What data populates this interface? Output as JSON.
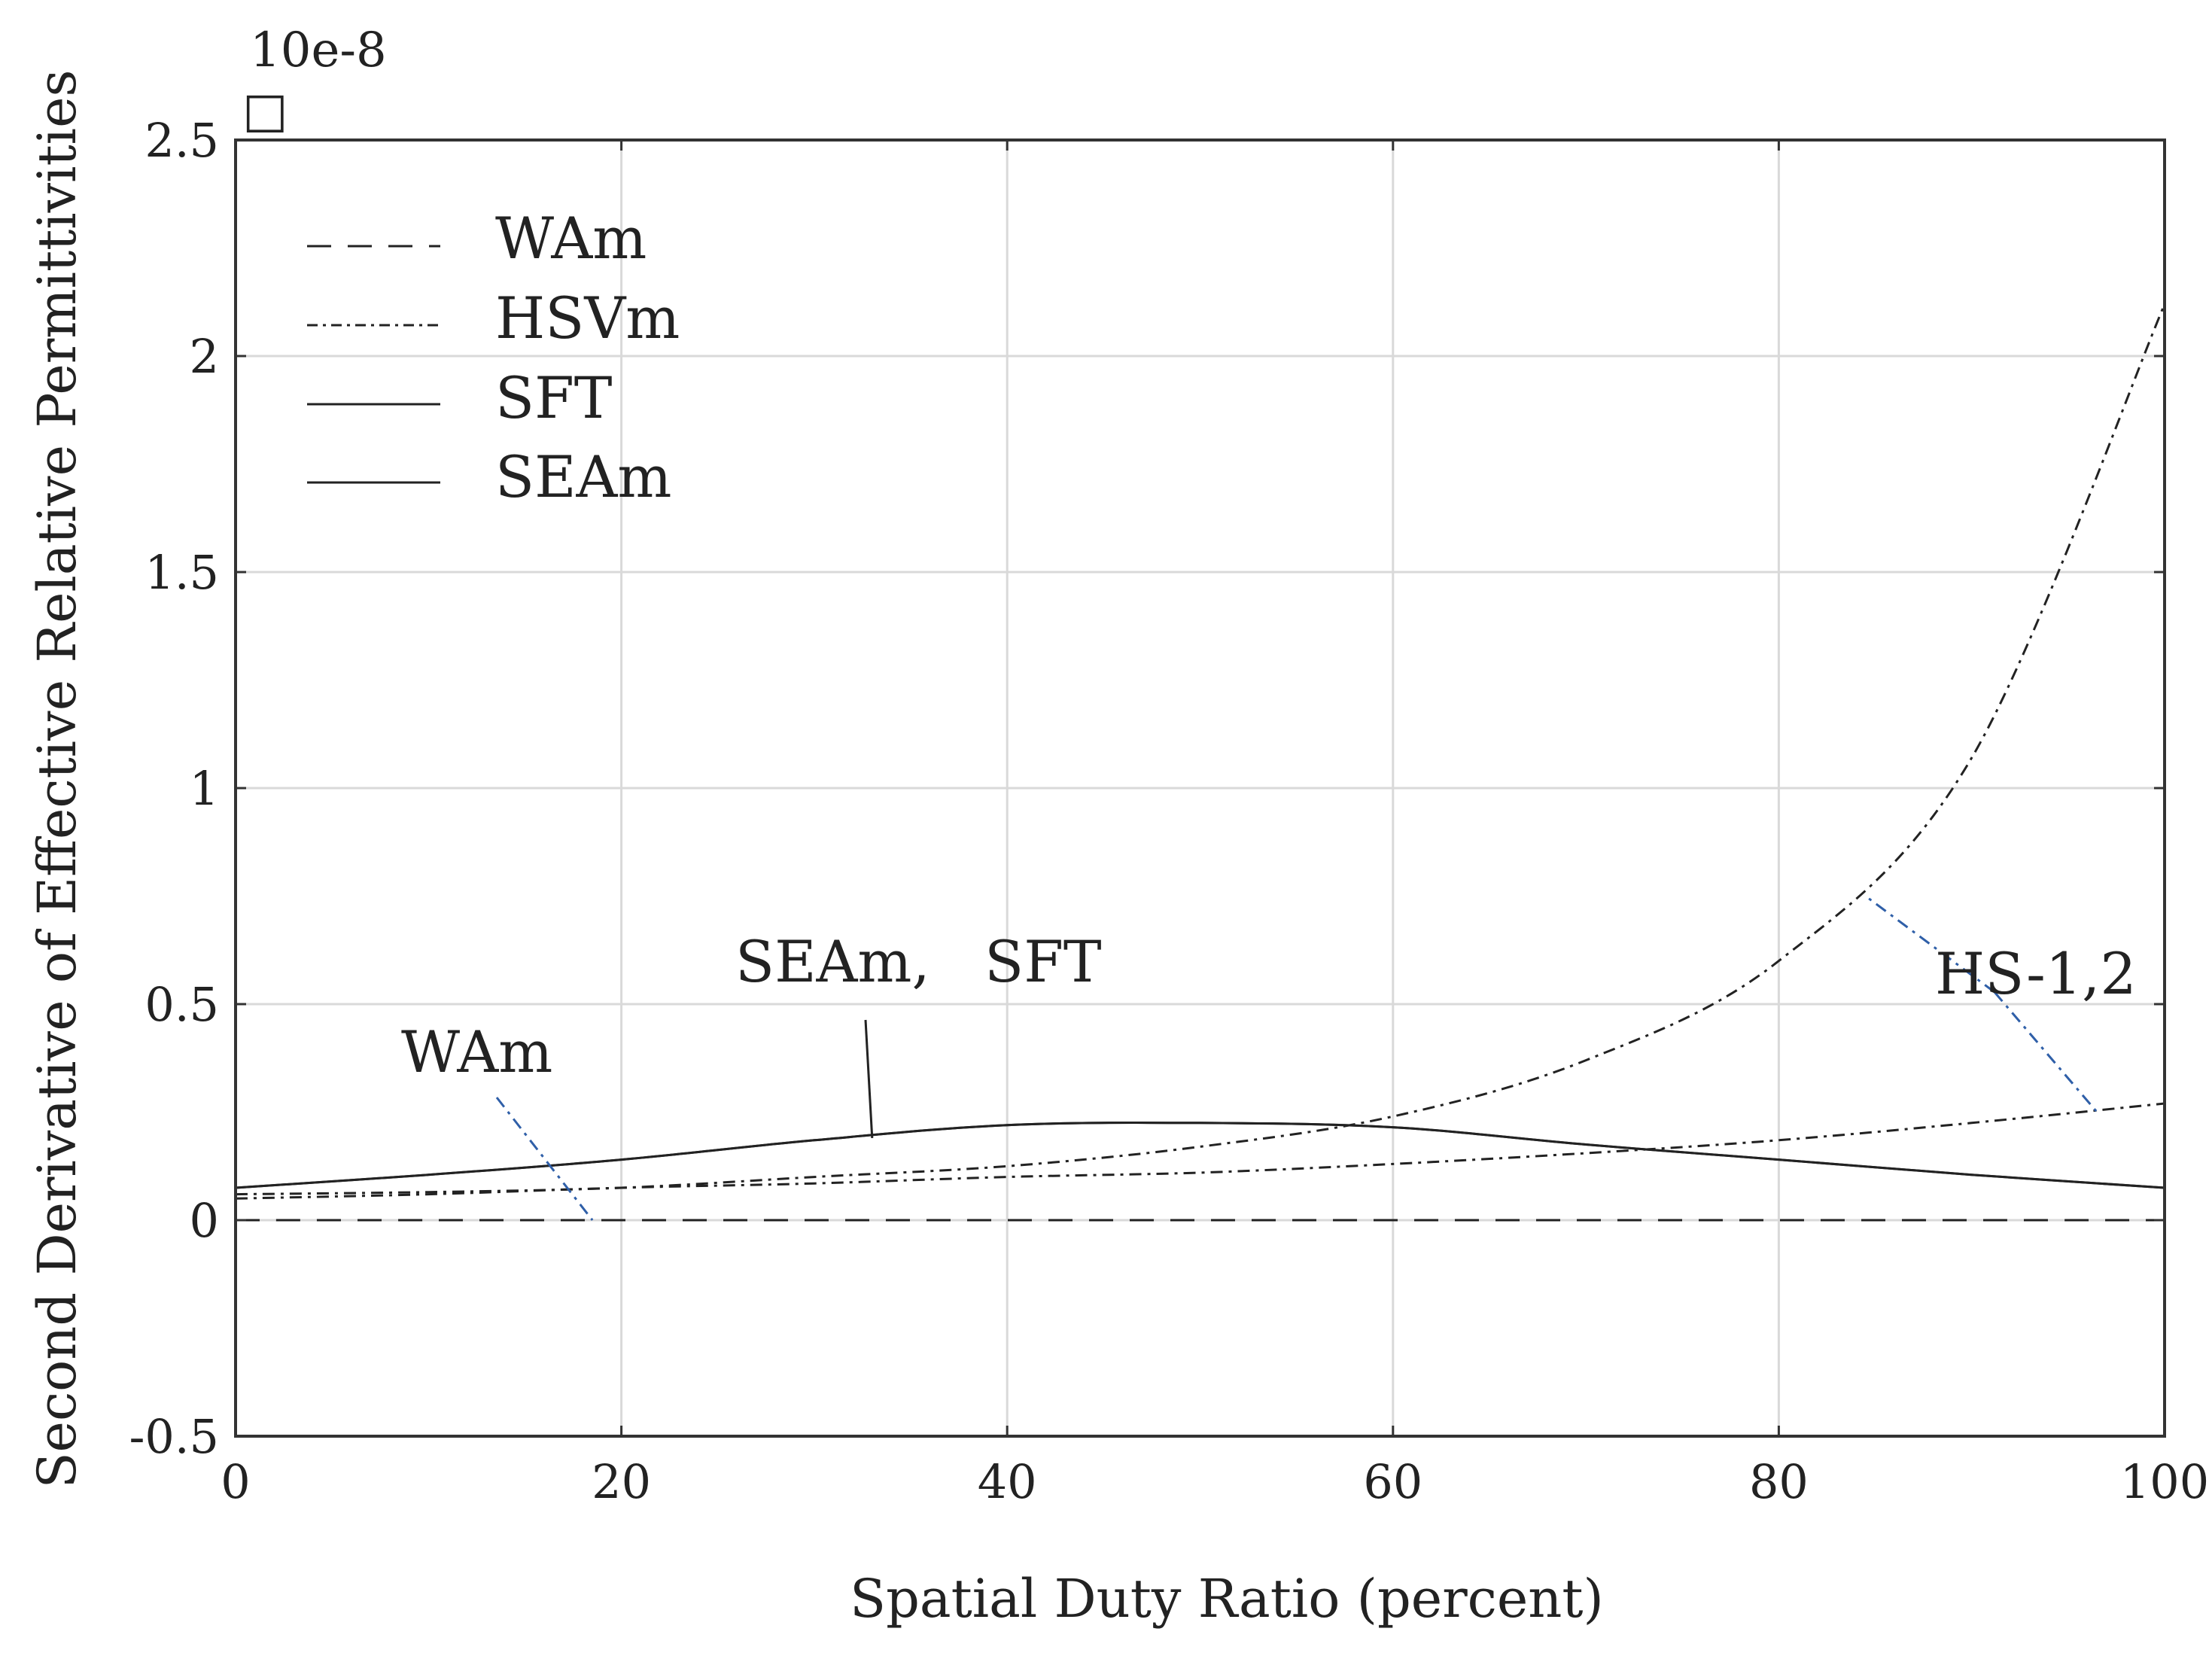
{
  "chart_data": {
    "type": "line",
    "title": "",
    "xlabel": "Spatial Duty Ratio (percent)",
    "ylabel": "Second Derivative of Effective Relative Permittivities",
    "exponent_label": "10e-8",
    "exponent_marker": "□",
    "xlim": [
      0,
      100
    ],
    "ylim": [
      -0.5,
      2.5
    ],
    "grid": true,
    "x_ticks": [
      0,
      20,
      40,
      60,
      80,
      100
    ],
    "x_tick_labels": [
      "0",
      "20",
      "40",
      "60",
      "80",
      "100"
    ],
    "y_ticks": [
      -0.5,
      0,
      0.5,
      1,
      1.5,
      2,
      2.5
    ],
    "y_tick_labels": [
      "-0.5",
      "0",
      "0.5",
      "1",
      "1.5",
      "2",
      "2.5"
    ],
    "legend_position": "top-left",
    "x": [
      0,
      10,
      20,
      30,
      40,
      50,
      60,
      70,
      80,
      90,
      100
    ],
    "series": [
      {
        "name": "WAm",
        "style": "dashed",
        "values": [
          0,
          0,
          0,
          0,
          0,
          0,
          0,
          0,
          0,
          0,
          0
        ]
      },
      {
        "name": "HSVm (HS-1)",
        "style": "dashdot",
        "values": [
          0.06,
          0.065,
          0.075,
          0.1,
          0.125,
          0.17,
          0.24,
          0.37,
          0.6,
          1.07,
          2.12
        ]
      },
      {
        "name": "HSVm (HS-2)",
        "style": "dashdot",
        "values": [
          0.05,
          0.06,
          0.075,
          0.085,
          0.1,
          0.11,
          0.13,
          0.155,
          0.185,
          0.225,
          0.27
        ]
      },
      {
        "name": "SFT",
        "style": "solid",
        "values": [
          0.075,
          0.105,
          0.14,
          0.185,
          0.22,
          0.225,
          0.215,
          0.175,
          0.14,
          0.105,
          0.075
        ]
      },
      {
        "name": "SEAm",
        "style": "solid",
        "values": [
          0.075,
          0.105,
          0.14,
          0.185,
          0.22,
          0.225,
          0.215,
          0.175,
          0.14,
          0.105,
          0.075
        ]
      }
    ],
    "legend": [
      "WAm",
      "HSVm",
      "SFT",
      "SEAm"
    ],
    "annotations": [
      {
        "text": "SEAm,   SFT",
        "points_to": {
          "x": 33,
          "y": 0.19
        }
      },
      {
        "text": "WAm",
        "points_to": {
          "x": 18.5,
          "y": 0
        }
      },
      {
        "text": "HS-1,2",
        "points_to": [
          {
            "x": 84.5,
            "y": 0.75
          },
          {
            "x": 96.5,
            "y": 0.25
          }
        ]
      }
    ],
    "colors": {
      "line": "#222222",
      "legend_text": "#2f5fa8",
      "grid": "#d9d9d9",
      "leader_blue": "#2f5fa8"
    }
  }
}
